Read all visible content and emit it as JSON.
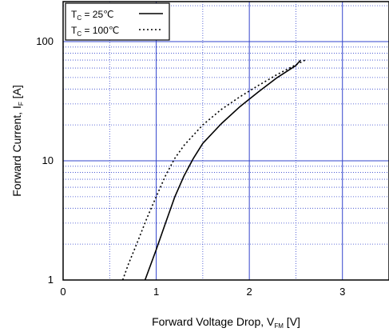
{
  "chart_data": {
    "type": "line",
    "xlabel": "Forward Voltage Drop, V",
    "xlabel_sub": "FM",
    "xlabel_unit": " [V]",
    "ylabel": "Forward Current, I",
    "ylabel_sub": "F",
    "ylabel_unit": " [A]",
    "xlim": [
      0,
      3.5
    ],
    "ylim": [
      1,
      100
    ],
    "yscale": "log",
    "grid": true,
    "x_ticks": [
      "0",
      "1",
      "2",
      "3"
    ],
    "y_ticks": [
      "1",
      "10",
      "100"
    ],
    "legend_position": "top-left",
    "legend": [
      {
        "prefix": "T",
        "sub": "C",
        "text": " =   25℃",
        "style": "solid"
      },
      {
        "prefix": "T",
        "sub": "C",
        "text": " = 100℃",
        "style": "dashed"
      }
    ],
    "series": [
      {
        "style": "solid",
        "x": [
          0.88,
          1.0,
          1.1,
          1.2,
          1.3,
          1.4,
          1.5,
          1.7,
          1.9,
          2.1,
          2.3,
          2.5,
          2.55
        ],
        "y": [
          1.0,
          1.8,
          3.0,
          5.0,
          7.5,
          10.5,
          14.0,
          20.5,
          28.5,
          38.0,
          50.0,
          63.0,
          70.0
        ]
      },
      {
        "style": "dashed",
        "x": [
          0.64,
          0.7,
          0.8,
          0.9,
          1.0,
          1.1,
          1.2,
          1.3,
          1.5,
          1.7,
          1.9,
          2.1,
          2.3,
          2.5,
          2.6
        ],
        "y": [
          1.0,
          1.35,
          2.1,
          3.3,
          5.0,
          7.5,
          10.5,
          13.5,
          20.0,
          27.0,
          34.5,
          43.0,
          53.0,
          64.0,
          70.0
        ]
      }
    ]
  }
}
